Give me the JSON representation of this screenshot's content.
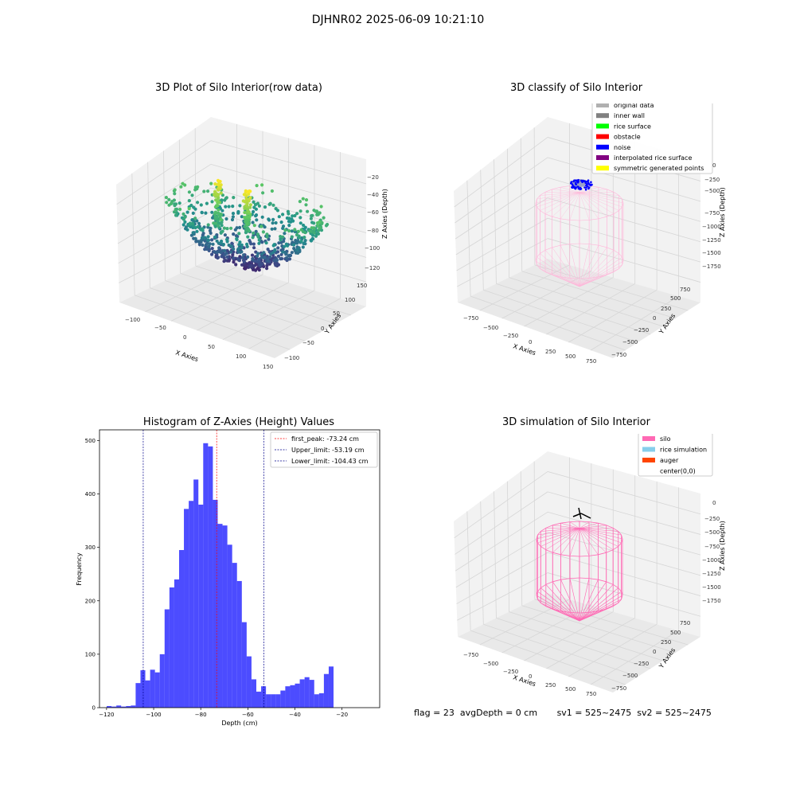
{
  "suptitle": "DJHNR02 2025-06-09 10:21:10",
  "status": {
    "flag": "flag = 23",
    "avg_depth": "avgDepth = 0 cm",
    "sv1": "sv1 = 525~2475",
    "sv2": "sv2 = 525~2475"
  },
  "chart_data": [
    {
      "type": "scatter",
      "subtype": "3d",
      "title": "3D Plot of Silo Interior(row data)",
      "xlabel": "X Axies",
      "ylabel": "Y Axies",
      "zlabel": "Z Axies (Depth)",
      "x_ticks": [
        "−100",
        "−50",
        "0",
        "50",
        "100",
        "150"
      ],
      "y_ticks": [
        "−100",
        "−50",
        "0",
        "50",
        "100",
        "150"
      ],
      "z_ticks": [
        "−120",
        "−100",
        "−80",
        "−60",
        "−40",
        "−20"
      ],
      "xlim": [
        -125,
        150
      ],
      "ylim": [
        -120,
        160
      ],
      "zlim": [
        -130,
        -10
      ],
      "colormap": "viridis",
      "grid": true
    },
    {
      "type": "scatter",
      "subtype": "3d",
      "title": "3D classify of Silo Interior",
      "xlabel": "X Axies",
      "ylabel": "Y Axies",
      "zlabel": "Z Axies (Depth)",
      "x_ticks": [
        "−750",
        "−500",
        "−250",
        "0",
        "250",
        "500",
        "750"
      ],
      "y_ticks": [
        "−750",
        "−500",
        "−250",
        "0",
        "250",
        "500",
        "750"
      ],
      "z_ticks": [
        "−1750",
        "−1500",
        "−1250",
        "−1000",
        "−750",
        "−500",
        "−250",
        "0"
      ],
      "legend_position": "top-right",
      "legend": [
        {
          "label": "original data",
          "color": "#b0b0b0"
        },
        {
          "label": "inner wall",
          "color": "#808080"
        },
        {
          "label": "rice surface",
          "color": "#00ff00"
        },
        {
          "label": "obstacle",
          "color": "#ff0000"
        },
        {
          "label": "noise",
          "color": "#0000ff"
        },
        {
          "label": "interpolated rice surface",
          "color": "#800080"
        },
        {
          "label": "symmetric generated points",
          "color": "#ffff00"
        }
      ],
      "silo_color": "#ffb6d9",
      "grid": true
    },
    {
      "type": "bar",
      "subtype": "histogram",
      "title": "Histogram of Z-Axies (Height) Values",
      "xlabel": "Depth (cm)",
      "ylabel": "Frequency",
      "xlim": [
        -123,
        -4
      ],
      "ylim": [
        0,
        520
      ],
      "x_ticks": [
        -120,
        -100,
        -80,
        -60,
        -40,
        -20
      ],
      "x_tick_labels": [
        "−120",
        "−100",
        "−80",
        "−60",
        "−40",
        "−20"
      ],
      "y_ticks": [
        0,
        100,
        200,
        300,
        400,
        500
      ],
      "bin_start": -122,
      "bin_width": 2.05,
      "values": [
        0,
        3,
        2,
        4,
        2,
        3,
        4,
        46,
        70,
        51,
        71,
        66,
        100,
        184,
        225,
        240,
        295,
        372,
        387,
        427,
        380,
        495,
        489,
        389,
        344,
        341,
        305,
        271,
        237,
        160,
        96,
        53,
        30,
        40,
        25,
        25,
        25,
        32,
        40,
        42,
        45,
        53,
        57,
        52,
        25,
        27,
        63,
        77
      ],
      "bar_color": "#0000ff",
      "bar_opacity": 0.7,
      "legend_position": "top-right",
      "lines": [
        {
          "label": "first_peak: -73.24 cm",
          "x": -73.24,
          "color": "#ff0000"
        },
        {
          "label": "Upper_limit: -53.19 cm",
          "x": -53.19,
          "color": "#00008b"
        },
        {
          "label": "Lower_limit: -104.43 cm",
          "x": -104.43,
          "color": "#00008b"
        }
      ]
    },
    {
      "type": "scatter",
      "subtype": "3d",
      "title": "3D simulation of Silo Interior",
      "xlabel": "X Axies",
      "ylabel": "Y Axies",
      "zlabel": "Z Axies (Depth)",
      "x_ticks": [
        "−750",
        "−500",
        "−250",
        "0",
        "250",
        "500",
        "750"
      ],
      "y_ticks": [
        "−750",
        "−500",
        "−250",
        "0",
        "250",
        "500",
        "750"
      ],
      "z_ticks": [
        "−1750",
        "−1500",
        "−1250",
        "−1000",
        "−750",
        "−500",
        "−250",
        "0"
      ],
      "legend_position": "top-right",
      "legend": [
        {
          "label": "silo",
          "color": "#ff69b4"
        },
        {
          "label": "rice simulation",
          "color": "#87ceeb"
        },
        {
          "label": "auger",
          "color": "#ff4500"
        },
        {
          "label": "center(0,0)",
          "color": "#ffffff"
        }
      ],
      "silo_color": "#ff69b4",
      "grid": true
    }
  ]
}
